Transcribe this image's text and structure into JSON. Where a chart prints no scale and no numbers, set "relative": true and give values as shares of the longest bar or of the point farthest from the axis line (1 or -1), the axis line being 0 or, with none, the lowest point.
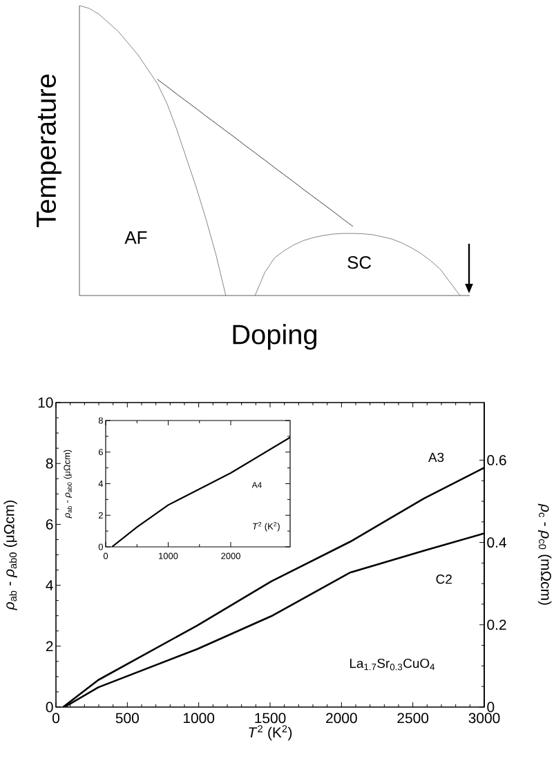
{
  "chart_data": [
    {
      "type": "line",
      "relative": true,
      "xlabel": "Doping",
      "ylabel": "Temperature",
      "categories": [
        null,
        null,
        null,
        null,
        null,
        null,
        null,
        null,
        null,
        null,
        null,
        null,
        null,
        null,
        null,
        null,
        null,
        null,
        null,
        null,
        null,
        null,
        null,
        null,
        null,
        null,
        null,
        null,
        null,
        null,
        null,
        null,
        null,
        null,
        null,
        null,
        null,
        null,
        null,
        null,
        null
      ],
      "series": [
        {
          "color": "#333333",
          "values": [
            1,
            0.99,
            0.97,
            0.94,
            0.91,
            0.87,
            0.83,
            0.78,
            0.73,
            0.66,
            0.57,
            0.47,
            0.37,
            0.26,
            0.14,
            0,
            null,
            null,
            null,
            null,
            null,
            null,
            null,
            null,
            null,
            null,
            null,
            null,
            null,
            null,
            null,
            null,
            null,
            null,
            null,
            null,
            null,
            null,
            null,
            null,
            null
          ]
        },
        {
          "color": "#333333",
          "values": [
            null,
            null,
            null,
            null,
            null,
            null,
            null,
            null,
            null,
            null,
            null,
            null,
            null,
            null,
            null,
            null,
            null,
            null,
            0,
            0.08,
            0.13,
            0.155,
            0.175,
            0.19,
            0.2,
            0.207,
            0.212,
            0.214,
            0.214,
            0.213,
            0.21,
            0.203,
            0.195,
            0.182,
            0.165,
            0.145,
            0.12,
            0.09,
            0.045,
            0,
            null
          ]
        },
        {
          "color": "#333333",
          "line_style": "dashed",
          "values": [
            null,
            null,
            null,
            null,
            null,
            null,
            null,
            null,
            0.745,
            0.72,
            0.694,
            0.669,
            0.644,
            0.618,
            0.593,
            0.568,
            0.543,
            0.517,
            0.492,
            0.467,
            0.441,
            0.416,
            0.391,
            0.365,
            0.34,
            0.315,
            0.29,
            0.264,
            0.239,
            null,
            null,
            null,
            null,
            null,
            null,
            null,
            null,
            null,
            null,
            null,
            null
          ]
        }
      ],
      "annotations": [
        "AF",
        "SC"
      ]
    },
    {
      "type": "line",
      "xlabel": "*T*$^{2}$ (K$^{2}$)",
      "ylabel": "*ρ*$_{ab}$ - *ρ*$_{ab0}$ (μΩcm)",
      "y2label": "*ρ*$_{c}$ - *ρ*$_{c0}$ (mΩcm)",
      "xlim": [
        0,
        3000
      ],
      "xticks": [
        0,
        500,
        1000,
        1500,
        2000,
        2500,
        3000
      ],
      "ylim": [
        0,
        10
      ],
      "yticks": [
        0,
        2,
        4,
        6,
        8,
        10
      ],
      "y2lim": [
        0,
        0.74
      ],
      "y2ticks": [
        0,
        0.2,
        0.4,
        0.6
      ],
      "series": [
        {
          "color": "#000000",
          "x": [
            50,
            297,
            990,
            1509,
            2061,
            2578,
            3000
          ],
          "values": [
            0,
            0.89,
            2.68,
            4.13,
            5.43,
            6.85,
            7.86
          ]
        },
        {
          "color": "#000000",
          "axis": "y2",
          "x": [
            60,
            297,
            990,
            1509,
            2061,
            2578,
            3000
          ],
          "values": [
            0,
            0.048,
            0.141,
            0.221,
            0.327,
            0.38,
            0.422
          ]
        }
      ],
      "annotations": [
        "A3",
        "C2",
        "La$_{1.7}$Sr$_{0.3}$CuO$_{4}$"
      ]
    },
    {
      "type": "line",
      "xlabel": "*T*$^{2}$ (K$^{2}$)",
      "ylabel": "*ρ*$_{ab}$ - *ρ*$_{ab0}$ (μΩcm)",
      "xlim": [
        0,
        2950
      ],
      "xticks": [
        0,
        1000,
        2000
      ],
      "ylim": [
        0,
        8
      ],
      "yticks": [
        0,
        2,
        4,
        6,
        8
      ],
      "series": [
        {
          "color": "#000000",
          "x": [
            100,
            500,
            1000,
            2000,
            2950
          ],
          "values": [
            0,
            1.25,
            2.65,
            4.68,
            6.93
          ]
        }
      ],
      "annotations": [
        "A4"
      ]
    }
  ]
}
